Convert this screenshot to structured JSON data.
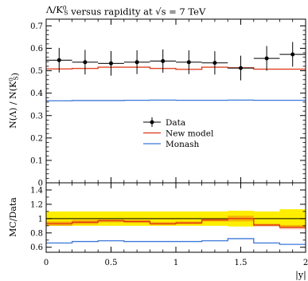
{
  "chart_data": [
    {
      "type": "line",
      "panel": "main",
      "title": "Λ/K_S^0 versus rapidity at √s = 7 TeV",
      "ylabel": "N(Λ) / N(K_S^0)",
      "xlim": [
        0,
        2
      ],
      "ylim": [
        0,
        0.73
      ],
      "x_ticks": [
        "0",
        "0.5",
        "1",
        "1.5",
        "2"
      ],
      "y_ticks": [
        "0",
        "0.1",
        "0.2",
        "0.3",
        "0.4",
        "0.5",
        "0.6",
        "0.7"
      ],
      "legend_position": "center",
      "x_edges": [
        0,
        0.2,
        0.4,
        0.6,
        0.8,
        1.0,
        1.2,
        1.4,
        1.6,
        1.8,
        2.0
      ],
      "series": [
        {
          "name": "Data",
          "style": "points-with-errorbars",
          "color": "#000000",
          "x": [
            0.1,
            0.3,
            0.5,
            0.7,
            0.9,
            1.1,
            1.3,
            1.5,
            1.7,
            1.9
          ],
          "values": [
            0.547,
            0.538,
            0.533,
            0.538,
            0.543,
            0.538,
            0.535,
            0.512,
            0.555,
            0.573
          ],
          "errors": [
            0.055,
            0.055,
            0.055,
            0.053,
            0.052,
            0.053,
            0.052,
            0.055,
            0.055,
            0.055
          ]
        },
        {
          "name": "New model",
          "style": "histogram",
          "color": "#dd3311",
          "values": [
            0.508,
            0.51,
            0.516,
            0.516,
            0.51,
            0.506,
            0.516,
            0.513,
            0.507,
            0.507
          ]
        },
        {
          "name": "Monash",
          "style": "histogram",
          "color": "#3b78d8",
          "values": [
            0.366,
            0.367,
            0.367,
            0.368,
            0.369,
            0.368,
            0.368,
            0.369,
            0.368,
            0.368
          ]
        }
      ]
    },
    {
      "type": "line",
      "panel": "ratio",
      "xlabel": "|y|",
      "ylabel": "MC/Data",
      "xlim": [
        0,
        2
      ],
      "ylim": [
        0.53,
        1.5
      ],
      "x_ticks": [
        "0",
        "0.5",
        "1",
        "1.5",
        "2"
      ],
      "y_ticks": [
        "0.6",
        "0.8",
        "1",
        "1.2",
        "1.4"
      ],
      "reference_line": 1,
      "band_color": "#ffee00",
      "x_edges": [
        0,
        0.2,
        0.4,
        0.6,
        0.8,
        1.0,
        1.2,
        1.4,
        1.6,
        1.8,
        2.0
      ],
      "band": {
        "lower": [
          0.9,
          0.9,
          0.9,
          0.9,
          0.9,
          0.9,
          0.9,
          0.89,
          0.9,
          0.87
        ],
        "upper": [
          1.1,
          1.1,
          1.1,
          1.1,
          1.1,
          1.1,
          1.1,
          1.11,
          1.1,
          1.13
        ]
      },
      "series": [
        {
          "name": "New model",
          "color": "#dd3311",
          "values": [
            0.93,
            0.95,
            0.97,
            0.96,
            0.93,
            0.94,
            0.98,
            1.0,
            0.91,
            0.88
          ],
          "errors": [
            0.03,
            0.03,
            0.02,
            0.02,
            0.02,
            0.02,
            0.02,
            0.04,
            0.02,
            0.03
          ]
        },
        {
          "name": "Monash",
          "color": "#3b78d8",
          "values": [
            0.66,
            0.68,
            0.69,
            0.68,
            0.68,
            0.68,
            0.69,
            0.72,
            0.66,
            0.64
          ]
        }
      ]
    }
  ]
}
